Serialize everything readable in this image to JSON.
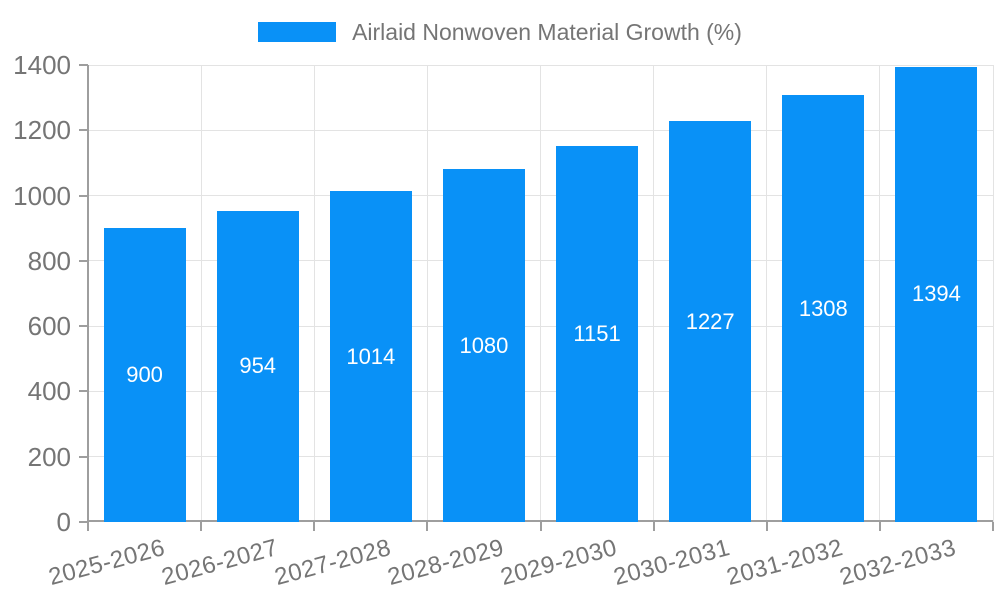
{
  "chart_data": {
    "type": "bar",
    "series_name": "Airlaid Nonwoven Material Growth (%)",
    "categories": [
      "2025-2026",
      "2026-2027",
      "2027-2028",
      "2028-2029",
      "2029-2030",
      "2030-2031",
      "2031-2032",
      "2032-2033"
    ],
    "values": [
      900,
      954,
      1014,
      1080,
      1151,
      1227,
      1308,
      1394
    ],
    "value_labels_position": "inside-middle",
    "ylim": [
      0,
      1400
    ],
    "yticks": [
      0,
      200,
      400,
      600,
      800,
      1000,
      1200,
      1400
    ],
    "xlabel": "",
    "ylabel": "",
    "title": "",
    "grid": true,
    "legend_position": "top-center",
    "x_label_rotation_deg": -15,
    "colors": {
      "bar": "#0991f7",
      "axis": "#9e9e9e",
      "grid": "#e3e3e3",
      "tick_text": "#757575",
      "legend_text": "#757575",
      "value_label_text": "#ffffff",
      "background": "#ffffff"
    }
  }
}
